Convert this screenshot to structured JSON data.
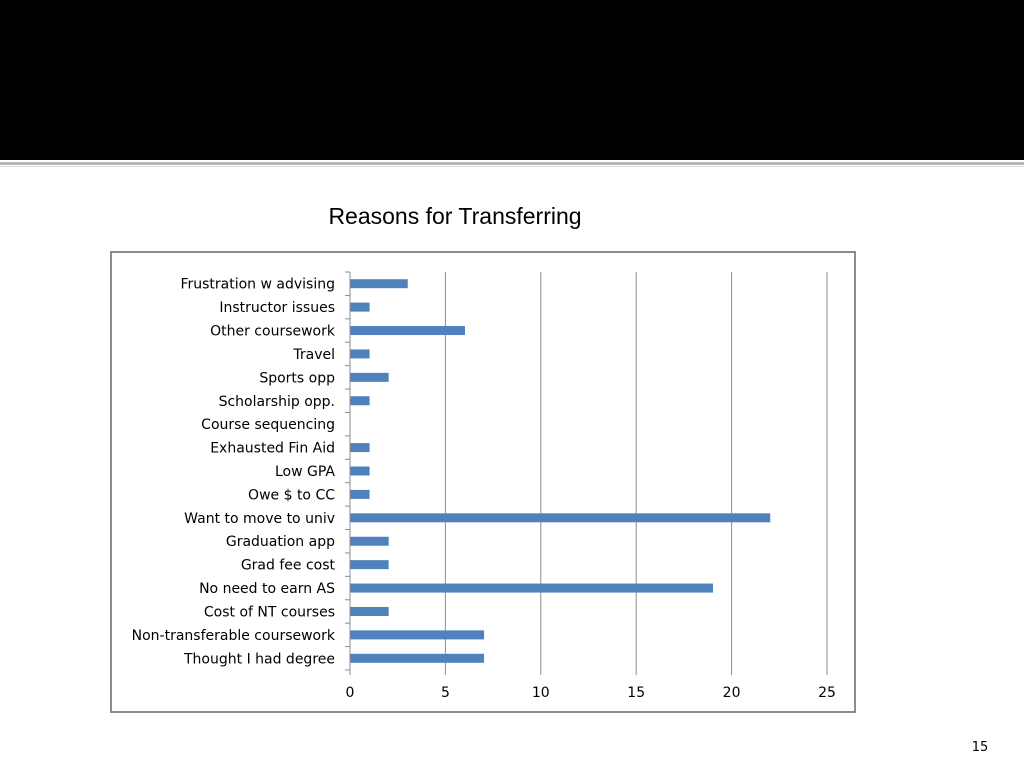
{
  "slide": {
    "page_number": "15",
    "header_color": "#000000"
  },
  "chart_data": {
    "type": "bar",
    "orientation": "horizontal",
    "title": "Reasons for Transferring",
    "xlabel": "",
    "ylabel": "",
    "xlim": [
      0,
      25
    ],
    "ticks": [
      "0",
      "5",
      "10",
      "15",
      "20",
      "25"
    ],
    "grid": "vertical",
    "legend": "none",
    "bar_color": "#4f81bd",
    "categories": [
      "Frustration w advising",
      "Instructor issues",
      "Other coursework",
      "Travel",
      "Sports opp",
      "Scholarship opp.",
      "Course sequencing",
      "Exhausted Fin Aid",
      "Low GPA",
      "Owe $ to CC",
      "Want to move to univ",
      "Graduation app",
      "Grad fee cost",
      "No need to earn AS",
      "Cost of NT courses",
      "Non-transferable coursework",
      "Thought I had degree"
    ],
    "values": [
      3,
      1,
      6,
      1,
      2,
      1,
      0,
      1,
      1,
      1,
      22,
      2,
      2,
      19,
      2,
      7,
      7
    ]
  }
}
